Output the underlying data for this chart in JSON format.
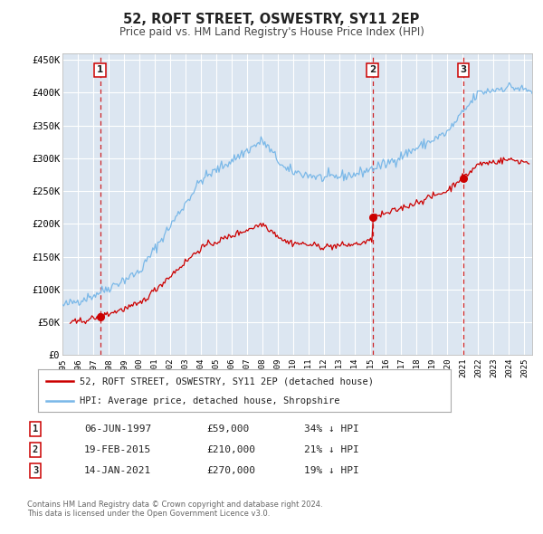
{
  "title": "52, ROFT STREET, OSWESTRY, SY11 2EP",
  "subtitle": "Price paid vs. HM Land Registry's House Price Index (HPI)",
  "xlim_start": 1995.0,
  "xlim_end": 2025.5,
  "ylim_min": 0,
  "ylim_max": 460000,
  "yticks": [
    0,
    50000,
    100000,
    150000,
    200000,
    250000,
    300000,
    350000,
    400000,
    450000
  ],
  "ytick_labels": [
    "£0",
    "£50K",
    "£100K",
    "£150K",
    "£200K",
    "£250K",
    "£300K",
    "£350K",
    "£400K",
    "£450K"
  ],
  "xticks": [
    1995,
    1996,
    1997,
    1998,
    1999,
    2000,
    2001,
    2002,
    2003,
    2004,
    2005,
    2006,
    2007,
    2008,
    2009,
    2010,
    2011,
    2012,
    2013,
    2014,
    2015,
    2016,
    2017,
    2018,
    2019,
    2020,
    2021,
    2022,
    2023,
    2024,
    2025
  ],
  "background_color": "#ffffff",
  "plot_bg_color": "#dce6f1",
  "grid_color": "#ffffff",
  "hpi_color": "#7ab8e8",
  "price_color": "#cc0000",
  "vline_color": "#cc0000",
  "transactions": [
    {
      "num": 1,
      "date_dec": 1997.44,
      "price": 59000,
      "label": "06-JUN-1997",
      "price_str": "£59,000",
      "hpi_str": "34% ↓ HPI"
    },
    {
      "num": 2,
      "date_dec": 2015.13,
      "price": 210000,
      "label": "19-FEB-2015",
      "price_str": "£210,000",
      "hpi_str": "21% ↓ HPI"
    },
    {
      "num": 3,
      "date_dec": 2021.04,
      "price": 270000,
      "label": "14-JAN-2021",
      "price_str": "£270,000",
      "hpi_str": "19% ↓ HPI"
    }
  ],
  "legend_line1": "52, ROFT STREET, OSWESTRY, SY11 2EP (detached house)",
  "legend_line2": "HPI: Average price, detached house, Shropshire",
  "footer_line1": "Contains HM Land Registry data © Crown copyright and database right 2024.",
  "footer_line2": "This data is licensed under the Open Government Licence v3.0."
}
